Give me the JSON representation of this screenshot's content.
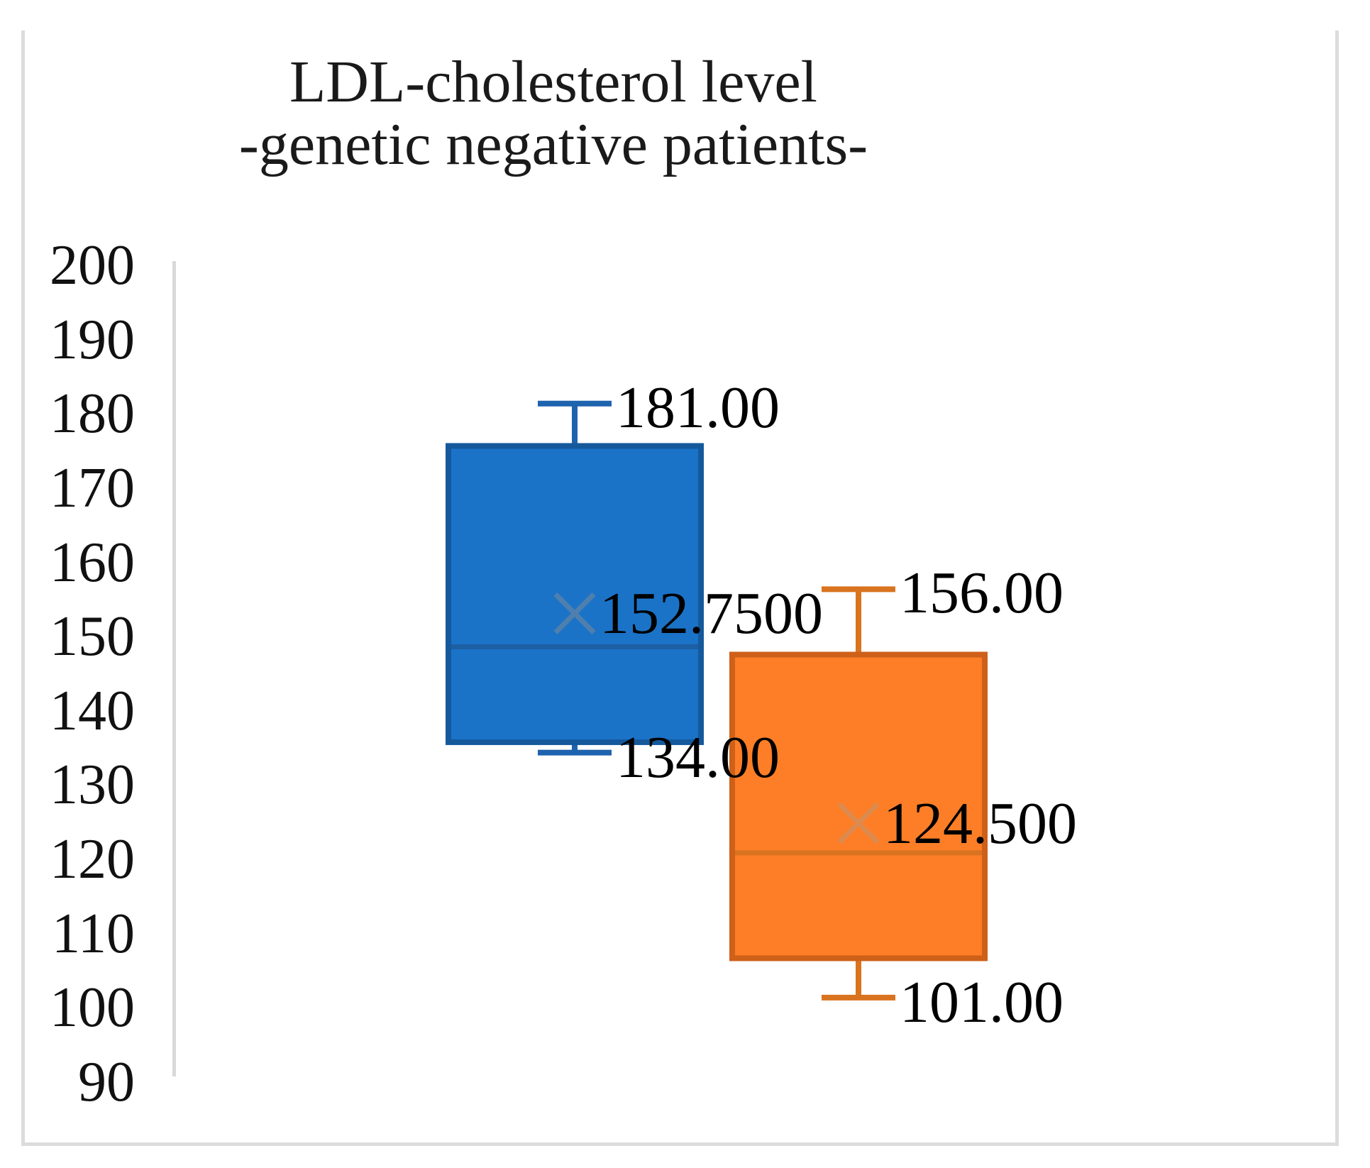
{
  "figure": {
    "title_line1": "LDL-cholesterol level",
    "title_line2": "-genetic negative patients-"
  },
  "chart_data": {
    "type": "boxplot",
    "title": "LDL-cholesterol level -genetic negative patients-",
    "categories": [
      "genetic negative patients"
    ],
    "grid": false,
    "legend": false,
    "y_axis": {
      "min": 90,
      "max": 200,
      "step": 10,
      "tick_labels": [
        "200",
        "190",
        "180",
        "170",
        "160",
        "150",
        "140",
        "130",
        "120",
        "110",
        "100",
        "90"
      ]
    },
    "series": [
      {
        "name": "box-blue",
        "stats": {
          "min": 134,
          "q1": 135.4,
          "median": 148.25,
          "q3": 175.3,
          "max": 181,
          "mean": 152.75
        },
        "labels": {
          "max": "181.00",
          "mean": "152.7500",
          "min": "134.00"
        },
        "colors": {
          "fill": "#1B73C8",
          "border": "#15599C",
          "whisker": "#1E63AE",
          "median": "#1D5FA3",
          "mean_marker": "#4E7FAD"
        }
      },
      {
        "name": "box-orange",
        "stats": {
          "min": 101,
          "q1": 106.3,
          "median": 120.5,
          "q3": 147.2,
          "max": 156,
          "mean": 124.5
        },
        "labels": {
          "max": "156.00",
          "mean": "124.500",
          "min": "101.00"
        },
        "colors": {
          "fill": "#FD7E27",
          "border": "#CE6018",
          "whisker": "#D9731F",
          "median": "#D9731F",
          "mean_marker": "#DD8A4E"
        }
      }
    ],
    "colors": {
      "axis_line": "#D9D9D9",
      "frame": "#DCDCDC",
      "label_text": "#000000",
      "title_text": "#1A1A1A"
    }
  }
}
